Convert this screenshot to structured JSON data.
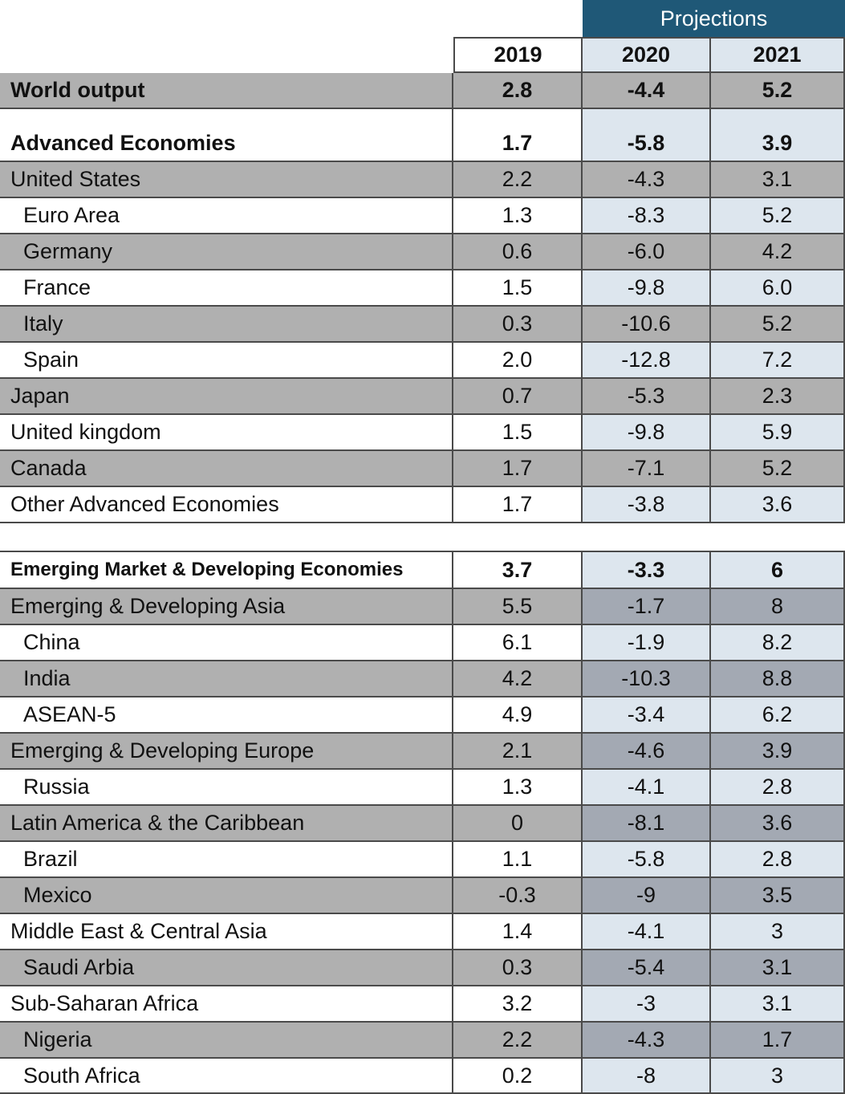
{
  "header": {
    "projections": "Projections",
    "years": [
      "2019",
      "2020",
      "2021"
    ]
  },
  "table": {
    "rows": [
      [
        "World output",
        "2.8",
        "-4.4",
        "5.2"
      ],
      [
        "Advanced Economies",
        "1.7",
        "-5.8",
        "3.9"
      ],
      [
        "United States",
        "2.2",
        "-4.3",
        "3.1"
      ],
      [
        "Euro Area",
        "1.3",
        "-8.3",
        "5.2"
      ],
      [
        "Germany",
        "0.6",
        "-6.0",
        "4.2"
      ],
      [
        "France",
        "1.5",
        "-9.8",
        "6.0"
      ],
      [
        "Italy",
        "0.3",
        "-10.6",
        "5.2"
      ],
      [
        "Spain",
        "2.0",
        "-12.8",
        "7.2"
      ],
      [
        "Japan",
        "0.7",
        "-5.3",
        "2.3"
      ],
      [
        "United kingdom",
        "1.5",
        "-9.8",
        "5.9"
      ],
      [
        "Canada",
        "1.7",
        "-7.1",
        "5.2"
      ],
      [
        "Other Advanced Economies",
        "1.7",
        "-3.8",
        "3.6"
      ],
      [
        "Emerging Market & Developing Economies",
        "3.7",
        "-3.3",
        "6"
      ],
      [
        "Emerging & Developing Asia",
        "5.5",
        "-1.7",
        "8"
      ],
      [
        "China",
        "6.1",
        "-1.9",
        "8.2"
      ],
      [
        "India",
        "4.2",
        "-10.3",
        "8.8"
      ],
      [
        "ASEAN-5",
        "4.9",
        "-3.4",
        "6.2"
      ],
      [
        "Emerging & Developing Europe",
        "2.1",
        "-4.6",
        "3.9"
      ],
      [
        "Russia",
        "1.3",
        "-4.1",
        "2.8"
      ],
      [
        "Latin America & the Caribbean",
        "0",
        "-8.1",
        "3.6"
      ],
      [
        "Brazil",
        "1.1",
        "-5.8",
        "2.8"
      ],
      [
        "Mexico",
        "-0.3",
        "-9",
        "3.5"
      ],
      [
        "Middle East & Central Asia",
        "1.4",
        "-4.1",
        "3"
      ],
      [
        "Saudi Arbia",
        "0.3",
        "-5.4",
        "3.1"
      ],
      [
        "Sub-Saharan Africa",
        "3.2",
        "-3",
        "3.1"
      ],
      [
        "Nigeria",
        "2.2",
        "-4.3",
        "1.7"
      ],
      [
        "South Africa",
        "0.2",
        "-8",
        "3"
      ]
    ]
  }
}
